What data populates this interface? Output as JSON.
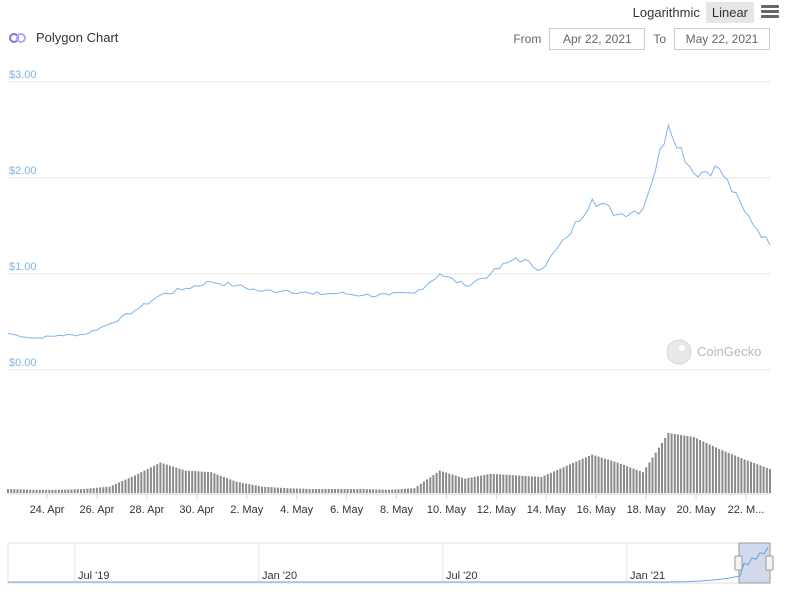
{
  "toolbar": {
    "log_label": "Logarithmic",
    "linear_label": "Linear"
  },
  "header": {
    "title": "Polygon Chart"
  },
  "range": {
    "from_label": "From",
    "from_value": "Apr 22, 2021",
    "to_label": "To",
    "to_value": "May 22, 2021"
  },
  "watermark": "CoinGecko",
  "colors": {
    "line": "#7cb5ec",
    "volume": "#8a8a8a",
    "grid": "#e6e6e6",
    "navigator": "#6fa8dc"
  },
  "chart_data": {
    "type": "line",
    "title": "Polygon Chart",
    "ylim": [
      0,
      3
    ],
    "y_ticks": [
      "$3.00",
      "$2.00",
      "$1.00",
      "$0.00"
    ],
    "x_ticks": [
      "24. Apr",
      "26. Apr",
      "28. Apr",
      "30. Apr",
      "2. May",
      "4. May",
      "6. May",
      "8. May",
      "10. May",
      "12. May",
      "14. May",
      "16. May",
      "18. May",
      "20. May",
      "22. M..."
    ],
    "price": {
      "x": [
        "Apr 22",
        "Apr 23",
        "Apr 24",
        "Apr 25",
        "Apr 26",
        "Apr 27",
        "Apr 28",
        "Apr 29",
        "Apr 30",
        "May 1",
        "May 2",
        "May 3",
        "May 4",
        "May 5",
        "May 6",
        "May 7",
        "May 8",
        "May 9",
        "May 10",
        "May 11",
        "May 12",
        "May 13",
        "May 14",
        "May 15",
        "May 16",
        "May 17",
        "May 18",
        "May 19",
        "May 20",
        "May 21",
        "May 22"
      ],
      "values": [
        0.38,
        0.33,
        0.36,
        0.37,
        0.48,
        0.62,
        0.78,
        0.85,
        0.92,
        0.88,
        0.82,
        0.83,
        0.79,
        0.8,
        0.78,
        0.78,
        0.8,
        1.0,
        0.88,
        1.0,
        1.17,
        1.05,
        1.38,
        1.78,
        1.62,
        1.68,
        2.55,
        2.05,
        2.1,
        1.65,
        1.3
      ]
    },
    "volume": {
      "x": [
        "Apr 22",
        "Apr 23",
        "Apr 24",
        "Apr 25",
        "Apr 26",
        "Apr 27",
        "Apr 28",
        "Apr 29",
        "Apr 30",
        "May 1",
        "May 2",
        "May 3",
        "May 4",
        "May 5",
        "May 6",
        "May 7",
        "May 8",
        "May 9",
        "May 10",
        "May 11",
        "May 12",
        "May 13",
        "May 14",
        "May 15",
        "May 16",
        "May 17",
        "May 18",
        "May 19",
        "May 20",
        "May 21",
        "May 22"
      ],
      "values": [
        0.05,
        0.04,
        0.04,
        0.05,
        0.08,
        0.22,
        0.38,
        0.28,
        0.26,
        0.14,
        0.08,
        0.06,
        0.05,
        0.05,
        0.05,
        0.04,
        0.06,
        0.28,
        0.18,
        0.24,
        0.22,
        0.2,
        0.34,
        0.48,
        0.38,
        0.26,
        0.75,
        0.7,
        0.55,
        0.42,
        0.3
      ]
    },
    "navigator": {
      "x_ticks": [
        "Jul '19",
        "Jan '20",
        "Jul '20",
        "Jan '21"
      ]
    }
  }
}
